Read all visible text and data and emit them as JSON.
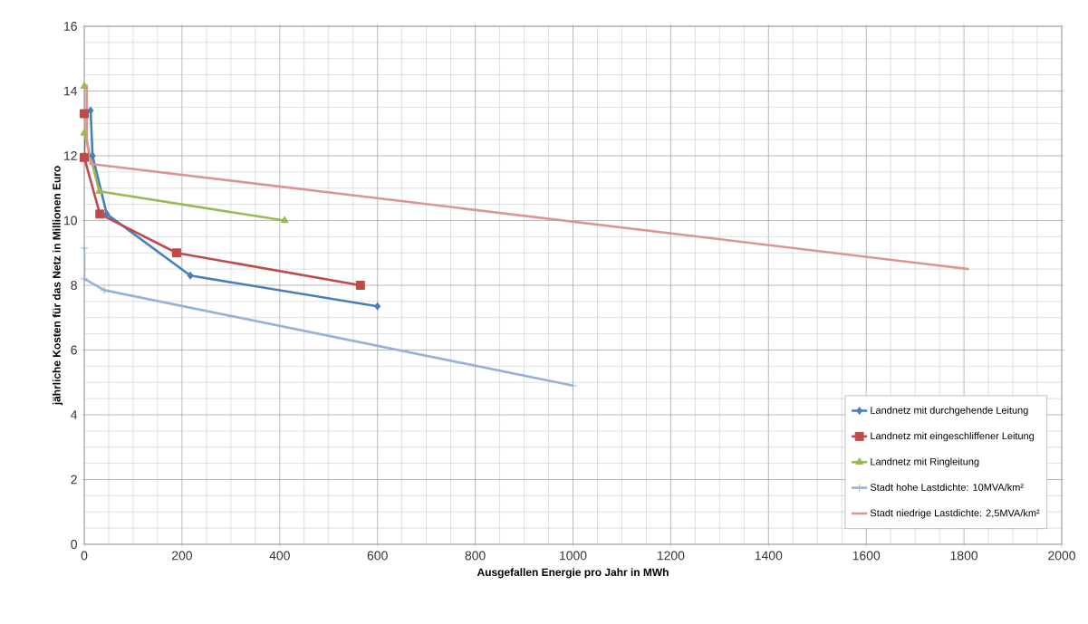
{
  "chart_data": {
    "type": "line",
    "xlabel": "Ausgefallen Energie pro Jahr in MWh",
    "ylabel": "jährliche Kosten für das Netz in Millionen Euro",
    "xlim": [
      0,
      2000
    ],
    "ylim": [
      0,
      16
    ],
    "xticks": [
      0,
      200,
      400,
      600,
      800,
      1000,
      1200,
      1400,
      1600,
      1800,
      2000
    ],
    "yticks": [
      0,
      2,
      4,
      6,
      8,
      10,
      12,
      14,
      16
    ],
    "grid": true,
    "legend": "bottom right",
    "series": [
      {
        "name": "Landnetz mit durchgehende Leitung",
        "color": "#4a7ebb",
        "marker": "diamond",
        "x": [
          13,
          17,
          46,
          217,
          600
        ],
        "values": [
          13.4,
          12.0,
          10.2,
          8.3,
          7.35
        ]
      },
      {
        "name": "Landnetz mit eingeschliffener Leitung",
        "color": "#be4b48",
        "marker": "square",
        "x": [
          0,
          0,
          32,
          189,
          565
        ],
        "values": [
          13.3,
          11.95,
          10.2,
          9.0,
          8.0
        ]
      },
      {
        "name": "Landnetz mit Ringleitung",
        "color": "#98b954",
        "marker": "triangle",
        "x": [
          0,
          0,
          31,
          410
        ],
        "values": [
          14.15,
          12.7,
          10.9,
          10.0
        ]
      },
      {
        "name": "Stadt hohe Lastdichte: 10MVA/km²",
        "color": "#95b3d7",
        "marker": "cross",
        "x": [
          0,
          0,
          41,
          1000
        ],
        "values": [
          9.15,
          8.2,
          7.85,
          4.9
        ]
      },
      {
        "name": "Stadt niedrige Lastdichte: 2,5MVA/km²",
        "color": "#d99694",
        "marker": "none",
        "x": [
          5,
          5,
          13,
          1810
        ],
        "values": [
          14.2,
          12.55,
          11.75,
          8.5
        ]
      }
    ]
  }
}
